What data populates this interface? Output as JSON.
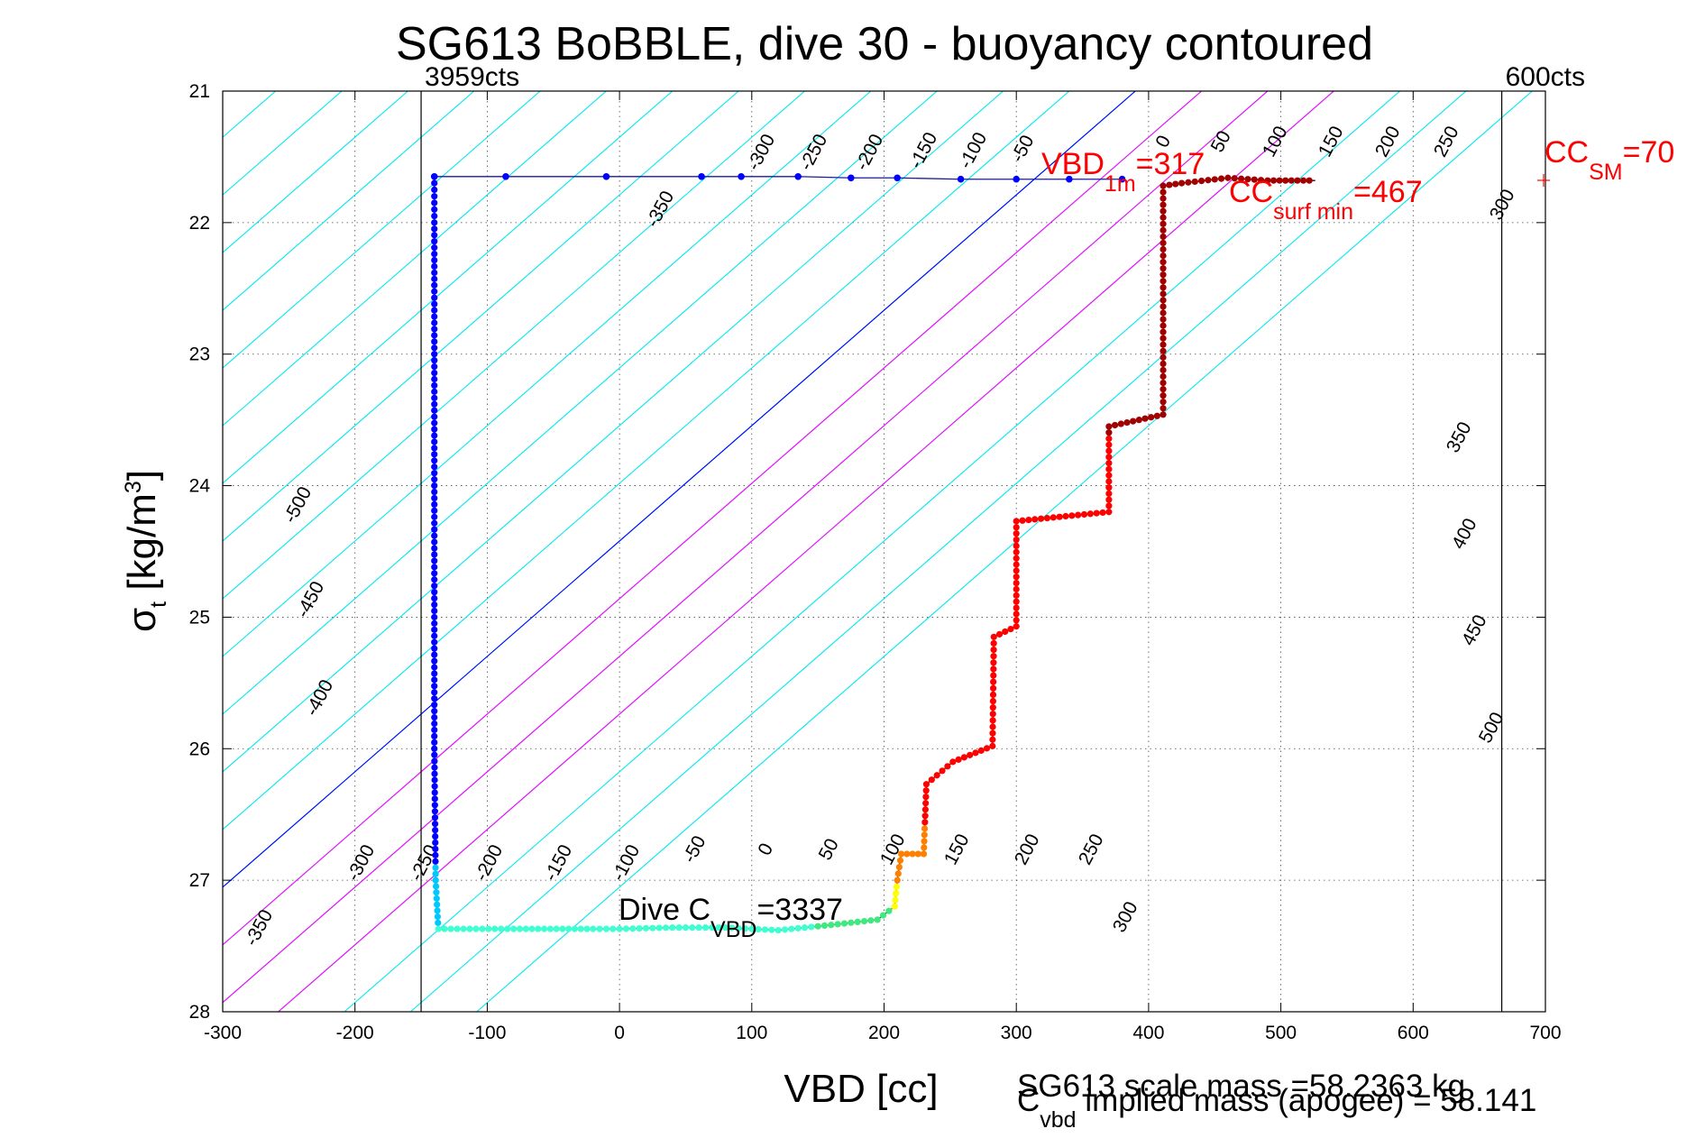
{
  "chart_data": {
    "type": "scatter",
    "title": "SG613 BoBBLE, dive 30 - buoyancy contoured",
    "xlabel": "VBD [cc]",
    "ylabel": "σ",
    "ylabel_sub": "t",
    "ylabel_unit": " [kg/m",
    "ylabel_unit_sup": "3",
    "ylabel_unit_end": "]",
    "xlim": [
      -300,
      700
    ],
    "ylim": [
      21,
      28
    ],
    "y_reversed": true,
    "grid": "dotted",
    "xticks": [
      -300,
      -200,
      -100,
      0,
      100,
      200,
      300,
      400,
      500,
      600,
      700
    ],
    "yticks": [
      21,
      22,
      23,
      24,
      25,
      26,
      27,
      28
    ],
    "colors": {
      "contour_neg": "#00e8f0",
      "contour_pos": "#ff00ff",
      "apogee_line": "#0000ff",
      "annotation": "#ff0000",
      "limit_line": "#000000"
    },
    "limit_lines": [
      {
        "x": -150,
        "label": "3959cts"
      },
      {
        "x": 667,
        "label": "600cts"
      }
    ],
    "buoyancy_contours": {
      "slope_cc_per_sigma": 114,
      "x_at_top": [
        -760,
        -710,
        -660,
        -610,
        -560,
        -510,
        -460,
        -410,
        -360,
        -310,
        -260,
        -210,
        -160,
        -110,
        -60,
        -10,
        40,
        90,
        140,
        190,
        240,
        290,
        340,
        390,
        440,
        490,
        540,
        590,
        640,
        690
      ],
      "zero_x_at_top": 390,
      "magenta_x_at_top": [
        440,
        490,
        540
      ],
      "labels_upper": [
        "-350",
        "-300",
        "-250",
        "-200",
        "-150",
        "-100",
        "-50",
        "0",
        "50",
        "100",
        "150",
        "200",
        "250",
        "300"
      ],
      "labels_lower": [
        "-350",
        "-300",
        "-250",
        "-200",
        "-150",
        "-100",
        "-50",
        "0",
        "50",
        "100",
        "150",
        "200",
        "250",
        "300"
      ],
      "labels_left": [
        "-500",
        "-450",
        "-400"
      ],
      "labels_right": [
        "350",
        "400",
        "450",
        "500"
      ]
    },
    "dive_path": {
      "series_note_colors": [
        "#0000ff",
        "#00c8ff",
        "#40ffd0",
        "#ffff00",
        "#ff8000",
        "#ff0000",
        "#a00000"
      ],
      "descent_surface": [
        [
          -140,
          21.65
        ],
        [
          -86,
          21.65
        ],
        [
          -10,
          21.65
        ],
        [
          62,
          21.65
        ],
        [
          92,
          21.65
        ],
        [
          135,
          21.65
        ],
        [
          175,
          21.66
        ],
        [
          210,
          21.66
        ],
        [
          258,
          21.67
        ],
        [
          300,
          21.67
        ],
        [
          340,
          21.67
        ],
        [
          380,
          21.67
        ]
      ],
      "descent_left": [
        [
          -140,
          21.65
        ],
        [
          -140,
          22.0
        ],
        [
          -140,
          23.0
        ],
        [
          -140,
          24.0
        ],
        [
          -140,
          25.0
        ],
        [
          -140,
          26.0
        ],
        [
          -139,
          27.0
        ],
        [
          -137,
          27.37
        ]
      ],
      "bottom": [
        [
          -137,
          27.37
        ],
        [
          -80,
          27.37
        ],
        [
          -20,
          27.37
        ],
        [
          0,
          27.37
        ],
        [
          40,
          27.36
        ],
        [
          80,
          27.36
        ],
        [
          120,
          27.38
        ],
        [
          160,
          27.34
        ],
        [
          195,
          27.3
        ],
        [
          208,
          27.2
        ],
        [
          210,
          27.0
        ]
      ],
      "ascent_steps": [
        [
          210,
          27.0
        ],
        [
          213,
          26.8
        ],
        [
          230,
          26.8
        ],
        [
          232,
          26.27
        ],
        [
          252,
          26.1
        ],
        [
          282,
          25.98
        ],
        [
          283,
          25.15
        ],
        [
          300,
          25.07
        ],
        [
          300,
          24.27
        ],
        [
          370,
          24.2
        ],
        [
          370,
          23.55
        ],
        [
          411,
          23.46
        ],
        [
          411,
          21.72
        ]
      ],
      "surface_ascent": [
        [
          411,
          21.72
        ],
        [
          425,
          21.7
        ],
        [
          460,
          21.66
        ],
        [
          490,
          21.68
        ],
        [
          526,
          21.68
        ]
      ]
    },
    "annotations": {
      "vbd1m": {
        "main": "VBD",
        "sub": "1m",
        "tail": "=317",
        "x": 320,
        "y": 21.62
      },
      "cc_surf_min": {
        "main": "CC",
        "sub": "surf min",
        "tail": "=467",
        "x": 465,
        "y": 21.85
      },
      "cc_sm": {
        "main": "CC",
        "sub": "SM",
        "tail": "=70",
        "x": 700,
        "y": 21.55
      },
      "dive_cvbd": {
        "main": "Dive C",
        "sub": "VBD",
        "tail": "=3337",
        "x": 2,
        "y": 27.28
      }
    },
    "footer": {
      "line1": "SG613 scale mass =58.2363 kg",
      "line2_main": "C",
      "line2_sub": "vbd",
      "line2_tail": " implied mass (apogee) = 58.141"
    }
  }
}
